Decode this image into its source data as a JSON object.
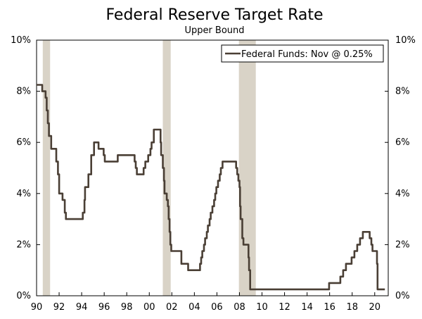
{
  "chart_data": {
    "type": "line",
    "title": "Federal Reserve Target Rate",
    "subtitle": "Upper Bound",
    "xlabel": "",
    "ylabel": "",
    "xlim": [
      1990,
      2021.2
    ],
    "ylim": [
      0,
      10
    ],
    "x_ticks": [
      1990,
      1992,
      1994,
      1996,
      1998,
      2000,
      2002,
      2004,
      2006,
      2008,
      2010,
      2012,
      2014,
      2016,
      2018,
      2020
    ],
    "x_tick_labels": [
      "90",
      "92",
      "94",
      "96",
      "98",
      "00",
      "02",
      "04",
      "06",
      "08",
      "10",
      "12",
      "14",
      "16",
      "18",
      "20"
    ],
    "y_ticks": [
      0,
      2,
      4,
      6,
      8,
      10
    ],
    "y_tick_labels": [
      "0%",
      "2%",
      "4%",
      "6%",
      "8%",
      "10%"
    ],
    "legend": "Federal Funds: Nov @ 0.25%",
    "legend_position": "top-right",
    "colors": {
      "line": "#4a3f35",
      "recession": "#d9d3c7",
      "axis": "#000000"
    },
    "recessions": [
      {
        "start": 1990.55,
        "end": 1991.2
      },
      {
        "start": 2001.2,
        "end": 2001.9
      },
      {
        "start": 2007.95,
        "end": 2009.45
      }
    ],
    "series": [
      {
        "name": "Federal Funds",
        "step": true,
        "points": [
          [
            1990.0,
            8.25
          ],
          [
            1990.5,
            8.0
          ],
          [
            1990.8,
            7.75
          ],
          [
            1990.9,
            7.25
          ],
          [
            1991.0,
            6.75
          ],
          [
            1991.1,
            6.25
          ],
          [
            1991.3,
            5.75
          ],
          [
            1991.75,
            5.25
          ],
          [
            1991.9,
            4.75
          ],
          [
            1992.0,
            4.0
          ],
          [
            1992.3,
            3.75
          ],
          [
            1992.5,
            3.25
          ],
          [
            1992.6,
            3.0
          ],
          [
            1994.1,
            3.25
          ],
          [
            1994.25,
            3.75
          ],
          [
            1994.3,
            4.25
          ],
          [
            1994.6,
            4.75
          ],
          [
            1994.85,
            5.5
          ],
          [
            1995.1,
            6.0
          ],
          [
            1995.5,
            5.75
          ],
          [
            1995.95,
            5.5
          ],
          [
            1996.05,
            5.25
          ],
          [
            1997.2,
            5.5
          ],
          [
            1998.7,
            5.25
          ],
          [
            1998.8,
            5.0
          ],
          [
            1998.9,
            4.75
          ],
          [
            1999.5,
            5.0
          ],
          [
            1999.65,
            5.25
          ],
          [
            1999.9,
            5.5
          ],
          [
            2000.1,
            5.75
          ],
          [
            2000.2,
            6.0
          ],
          [
            2000.4,
            6.5
          ],
          [
            2001.0,
            6.0
          ],
          [
            2001.05,
            5.5
          ],
          [
            2001.2,
            5.0
          ],
          [
            2001.3,
            4.5
          ],
          [
            2001.35,
            4.0
          ],
          [
            2001.55,
            3.75
          ],
          [
            2001.65,
            3.5
          ],
          [
            2001.72,
            3.0
          ],
          [
            2001.8,
            2.5
          ],
          [
            2001.87,
            2.0
          ],
          [
            2001.95,
            1.75
          ],
          [
            2002.85,
            1.25
          ],
          [
            2003.45,
            1.0
          ],
          [
            2004.5,
            1.25
          ],
          [
            2004.6,
            1.5
          ],
          [
            2004.7,
            1.75
          ],
          [
            2004.85,
            2.0
          ],
          [
            2004.95,
            2.25
          ],
          [
            2005.1,
            2.5
          ],
          [
            2005.2,
            2.75
          ],
          [
            2005.35,
            3.0
          ],
          [
            2005.45,
            3.25
          ],
          [
            2005.6,
            3.5
          ],
          [
            2005.75,
            3.75
          ],
          [
            2005.85,
            4.0
          ],
          [
            2005.95,
            4.25
          ],
          [
            2006.1,
            4.5
          ],
          [
            2006.25,
            4.75
          ],
          [
            2006.35,
            5.0
          ],
          [
            2006.5,
            5.25
          ],
          [
            2007.7,
            5.0
          ],
          [
            2007.8,
            4.75
          ],
          [
            2007.9,
            4.5
          ],
          [
            2008.0,
            4.25
          ],
          [
            2008.05,
            3.5
          ],
          [
            2008.1,
            3.0
          ],
          [
            2008.25,
            2.25
          ],
          [
            2008.35,
            2.0
          ],
          [
            2008.8,
            1.5
          ],
          [
            2008.85,
            1.0
          ],
          [
            2008.95,
            0.25
          ],
          [
            2015.95,
            0.5
          ],
          [
            2016.95,
            0.75
          ],
          [
            2017.2,
            1.0
          ],
          [
            2017.45,
            1.25
          ],
          [
            2017.95,
            1.5
          ],
          [
            2018.2,
            1.75
          ],
          [
            2018.45,
            2.0
          ],
          [
            2018.7,
            2.25
          ],
          [
            2018.95,
            2.5
          ],
          [
            2019.55,
            2.25
          ],
          [
            2019.7,
            2.0
          ],
          [
            2019.8,
            1.75
          ],
          [
            2020.2,
            1.25
          ],
          [
            2020.25,
            0.25
          ],
          [
            2020.9,
            0.25
          ]
        ]
      }
    ]
  }
}
